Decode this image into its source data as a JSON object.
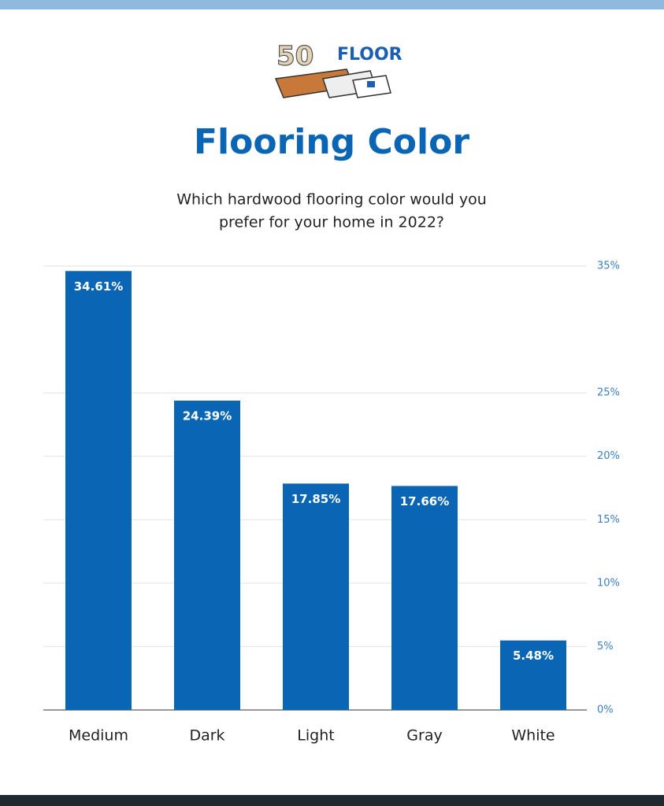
{
  "logo": {
    "number": "50",
    "word": "FLOOR"
  },
  "chart_data": {
    "type": "bar",
    "title": "Flooring Color",
    "subtitle": [
      "Which hardwood flooring color would you",
      "prefer for your home in 2022?"
    ],
    "categories": [
      "Medium",
      "Dark",
      "Light",
      "Gray",
      "White"
    ],
    "values": [
      34.61,
      24.39,
      17.85,
      17.66,
      5.48
    ],
    "value_labels": [
      "34.61%",
      "24.39%",
      "17.85%",
      "17.66%",
      "5.48%"
    ],
    "color": "#0a66b5",
    "ylim": [
      0,
      35
    ],
    "yticks": [
      {
        "value": 0,
        "label": "0%"
      },
      {
        "value": 5,
        "label": "5%"
      },
      {
        "value": 10,
        "label": "10%"
      },
      {
        "value": 15,
        "label": "15%"
      },
      {
        "value": 20,
        "label": "20%"
      },
      {
        "value": 25,
        "label": "25%"
      },
      {
        "value": 35,
        "label": "35%"
      }
    ],
    "grid": true
  }
}
